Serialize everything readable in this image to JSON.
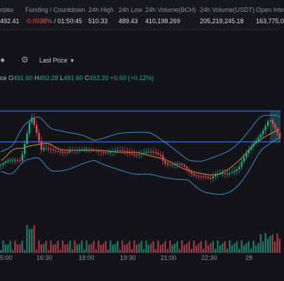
{
  "header": {
    "index": {
      "label": "ndex",
      "value": "492.41"
    },
    "funding": {
      "label": "Funding / Countdown",
      "rate": "-0.0038%",
      "countdown": "/ 01:50:45"
    },
    "high": {
      "label": "24h High",
      "value": "510.33"
    },
    "low": {
      "label": "24h Low",
      "value": "489.43"
    },
    "vol_bch": {
      "label": "24h Volume(BCH)",
      "value": "410,198.269"
    },
    "vol_usdt": {
      "label": "24h Volume(USDT)",
      "value": "205,219,245.18"
    },
    "open_interest": {
      "label": "Open Inte",
      "value": "163,775,0"
    }
  },
  "toolbar": {
    "last_price_label": "Last Price",
    "icons": [
      "dot-icon",
      "settings-gear-icon",
      "caret-down-icon"
    ]
  },
  "legend": {
    "prefix": "ce",
    "open_label": "O",
    "open": "491.60",
    "high_label": "H",
    "high": "492.28",
    "low_label": "L",
    "low": "491.60",
    "close_label": "C",
    "close": "492.20",
    "change": "+0.60 (+0.12%)"
  },
  "colors": {
    "up": "#1fae8a",
    "down": "#e34b5c",
    "band": "#3a8fd6",
    "ma": "#d98b2b",
    "hline": "#3a6ff0",
    "background": "#121418"
  },
  "xaxis": {
    "ticks": [
      "5:00",
      "16:30",
      "18:00",
      "19:30",
      "21:00",
      "22:30",
      "28"
    ]
  },
  "chart_data": {
    "type": "candlestick",
    "overlays": [
      "Bollinger Bands",
      "Moving Average"
    ],
    "horizontal_lines": 2,
    "volume_histogram": true,
    "shape_description": "price range-bound, spike near 16:00, dip near 22:30, rebound near 28"
  }
}
